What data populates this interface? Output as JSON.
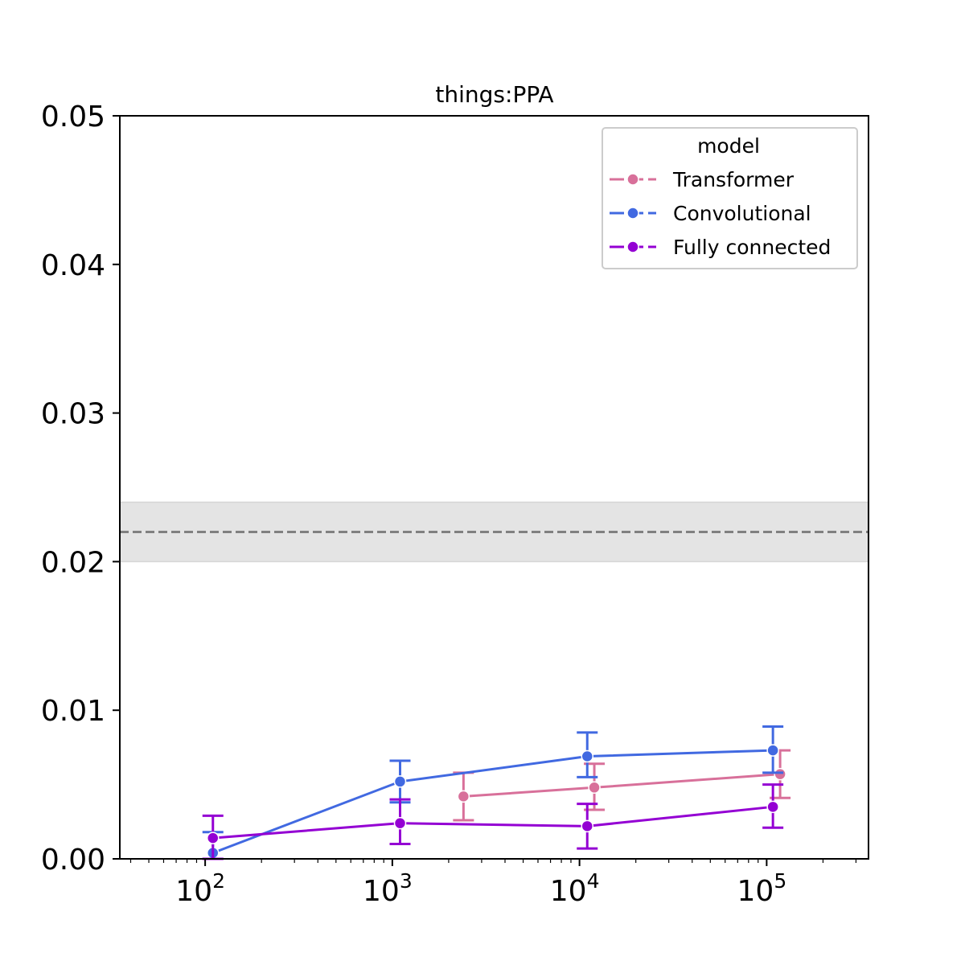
{
  "chart_data": {
    "type": "line",
    "title": "things:PPA",
    "xlabel": "",
    "ylabel": "",
    "xscale": "log",
    "xlim": [
      35,
      350000
    ],
    "ylim": [
      0,
      0.05
    ],
    "x_ticks": [
      {
        "base": "10",
        "exp": "2",
        "value": 100
      },
      {
        "base": "10",
        "exp": "3",
        "value": 1000
      },
      {
        "base": "10",
        "exp": "4",
        "value": 10000
      },
      {
        "base": "10",
        "exp": "5",
        "value": 100000
      }
    ],
    "y_ticks": [
      "0.00",
      "0.01",
      "0.02",
      "0.03",
      "0.04",
      "0.05"
    ],
    "grid": false,
    "reference": {
      "y": 0.022,
      "band": [
        0.02,
        0.024
      ],
      "style": "dashed",
      "color": "#808080",
      "band_color": "#e4e4e4"
    },
    "legend": {
      "title": "model",
      "position": "top-right"
    },
    "series": [
      {
        "name": "Transformer",
        "color": "#d8709a",
        "points": [
          {
            "x": 2400,
            "y": 0.0042,
            "err": [
              0.0026,
              0.0058
            ]
          },
          {
            "x": 12000,
            "y": 0.0048,
            "err": [
              0.0033,
              0.0064
            ]
          },
          {
            "x": 118000,
            "y": 0.0057,
            "err": [
              0.0041,
              0.0073
            ]
          }
        ]
      },
      {
        "name": "Convolutional",
        "color": "#4169e1",
        "points": [
          {
            "x": 110,
            "y": 0.0004,
            "err": [
              0.0,
              0.0018
            ]
          },
          {
            "x": 1100,
            "y": 0.0052,
            "err": [
              0.0038,
              0.0066
            ]
          },
          {
            "x": 11000,
            "y": 0.0069,
            "err": [
              0.0055,
              0.0085
            ]
          },
          {
            "x": 108000,
            "y": 0.0073,
            "err": [
              0.0058,
              0.0089
            ]
          }
        ]
      },
      {
        "name": "Fully connected",
        "color": "#9400d3",
        "points": [
          {
            "x": 110,
            "y": 0.0014,
            "err": [
              0.0,
              0.0029
            ]
          },
          {
            "x": 1100,
            "y": 0.0024,
            "err": [
              0.001,
              0.004
            ]
          },
          {
            "x": 11000,
            "y": 0.0022,
            "err": [
              0.0007,
              0.0037
            ]
          },
          {
            "x": 108000,
            "y": 0.0035,
            "err": [
              0.0021,
              0.005
            ]
          }
        ]
      }
    ]
  }
}
